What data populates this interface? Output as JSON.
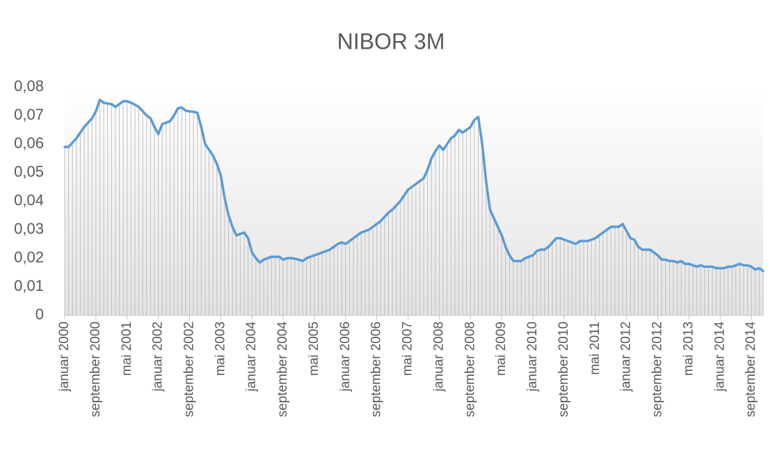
{
  "chart_data": {
    "type": "line",
    "title": "NIBOR 3M",
    "categories": [
      "januar 2000",
      null,
      null,
      null,
      null,
      null,
      null,
      null,
      "september 2000",
      null,
      null,
      null,
      null,
      null,
      null,
      null,
      "mai 2001",
      null,
      null,
      null,
      null,
      null,
      null,
      null,
      "januar 2002",
      null,
      null,
      null,
      null,
      null,
      null,
      null,
      "september 2002",
      null,
      null,
      null,
      null,
      null,
      null,
      null,
      "mai 2003",
      null,
      null,
      null,
      null,
      null,
      null,
      null,
      "januar 2004",
      null,
      null,
      null,
      null,
      null,
      null,
      null,
      "september 2004",
      null,
      null,
      null,
      null,
      null,
      null,
      null,
      "mai 2005",
      null,
      null,
      null,
      null,
      null,
      null,
      null,
      "januar 2006",
      null,
      null,
      null,
      null,
      null,
      null,
      null,
      "september 2006",
      null,
      null,
      null,
      null,
      null,
      null,
      null,
      "mai 2007",
      null,
      null,
      null,
      null,
      null,
      null,
      null,
      "januar 2008",
      null,
      null,
      null,
      null,
      null,
      null,
      null,
      "september 2008",
      null,
      null,
      null,
      null,
      null,
      null,
      null,
      "mai 2009",
      null,
      null,
      null,
      null,
      null,
      null,
      null,
      "januar 2010",
      null,
      null,
      null,
      null,
      null,
      null,
      null,
      "september 2010",
      null,
      null,
      null,
      null,
      null,
      null,
      null,
      "mai 2011",
      null,
      null,
      null,
      null,
      null,
      null,
      null,
      "januar 2012",
      null,
      null,
      null,
      null,
      null,
      null,
      null,
      "september 2012",
      null,
      null,
      null,
      null,
      null,
      null,
      null,
      "mai 2013",
      null,
      null,
      null,
      null,
      null,
      null,
      null,
      "januar 2014",
      null,
      null,
      null,
      null,
      null,
      null,
      null,
      "september 2014",
      null,
      null,
      null
    ],
    "series": [
      {
        "color": "#5b9bd5",
        "values": [
          0.059,
          0.059,
          0.0605,
          0.062,
          0.064,
          0.066,
          0.0675,
          0.069,
          0.0715,
          0.0755,
          0.0745,
          0.0742,
          0.074,
          0.073,
          0.074,
          0.075,
          0.075,
          0.0745,
          0.0738,
          0.073,
          0.0715,
          0.07,
          0.069,
          0.066,
          0.0635,
          0.067,
          0.0675,
          0.068,
          0.07,
          0.0725,
          0.0728,
          0.0717,
          0.0715,
          0.0713,
          0.071,
          0.066,
          0.06,
          0.058,
          0.056,
          0.053,
          0.049,
          0.041,
          0.035,
          0.031,
          0.028,
          0.0285,
          0.029,
          0.027,
          0.022,
          0.02,
          0.0185,
          0.0195,
          0.02,
          0.0205,
          0.0205,
          0.0205,
          0.0195,
          0.02,
          0.02,
          0.0198,
          0.0195,
          0.019,
          0.02,
          0.0205,
          0.021,
          0.0215,
          0.022,
          0.0225,
          0.023,
          0.024,
          0.025,
          0.0255,
          0.025,
          0.026,
          0.027,
          0.028,
          0.029,
          0.0295,
          0.03,
          0.031,
          0.032,
          0.033,
          0.0345,
          0.036,
          0.037,
          0.0385,
          0.04,
          0.042,
          0.044,
          0.045,
          0.046,
          0.047,
          0.048,
          0.051,
          0.055,
          0.0575,
          0.0595,
          0.058,
          0.06,
          0.062,
          0.063,
          0.065,
          0.064,
          0.065,
          0.066,
          0.0685,
          0.0695,
          0.06,
          0.047,
          0.037,
          0.034,
          0.031,
          0.028,
          0.024,
          0.021,
          0.019,
          0.019,
          0.019,
          0.02,
          0.0205,
          0.021,
          0.0225,
          0.023,
          0.023,
          0.024,
          0.0255,
          0.027,
          0.027,
          0.0265,
          0.026,
          0.0255,
          0.025,
          0.026,
          0.026,
          0.026,
          0.0265,
          0.027,
          0.028,
          0.029,
          0.03,
          0.031,
          0.031,
          0.031,
          0.032,
          0.0295,
          0.027,
          0.0265,
          0.024,
          0.023,
          0.023,
          0.023,
          0.022,
          0.021,
          0.0195,
          0.0195,
          0.019,
          0.019,
          0.0185,
          0.019,
          0.018,
          0.018,
          0.0175,
          0.017,
          0.0175,
          0.017,
          0.017,
          0.017,
          0.0165,
          0.0165,
          0.0165,
          0.017,
          0.017,
          0.0175,
          0.018,
          0.0175,
          0.0175,
          0.017,
          0.016,
          0.0165,
          0.0155
        ]
      }
    ],
    "drop_lines": true,
    "drop_line_color": "#bfbfbf",
    "ylim": [
      0,
      0.08
    ],
    "yticks": [
      0,
      {
        "value": 0.01,
        "label": "0,01"
      },
      {
        "value": 0.02,
        "label": "0,02"
      },
      {
        "value": 0.03,
        "label": "0,03"
      },
      {
        "value": 0.04,
        "label": "0,04"
      },
      {
        "value": 0.05,
        "label": "0,05"
      },
      {
        "value": 0.06,
        "label": "0,06"
      },
      {
        "value": 0.07,
        "label": "0,07"
      },
      {
        "value": 0.08,
        "label": "0,08"
      }
    ],
    "grid": false
  }
}
